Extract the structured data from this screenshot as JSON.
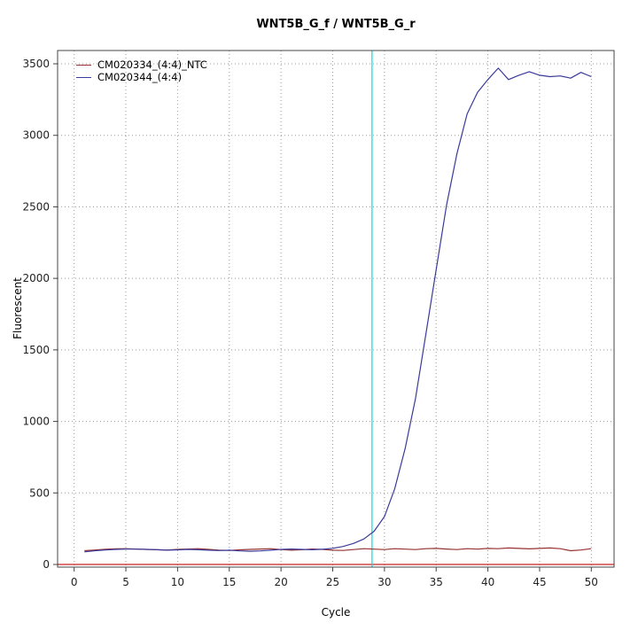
{
  "chart_data": {
    "type": "line",
    "title": "WNT5B_G_f / WNT5B_G_r",
    "xlabel": "Cycle",
    "ylabel": "Fluorescent",
    "x_ticks": [
      0,
      5,
      10,
      15,
      20,
      25,
      30,
      35,
      40,
      45,
      50
    ],
    "y_ticks": [
      0,
      500,
      1000,
      1500,
      2000,
      2500,
      3000,
      3500
    ],
    "xlim": [
      -1.6,
      52.2
    ],
    "ylim": [
      -18.6,
      3593
    ],
    "grid": "dotted",
    "legend_position": "top-left",
    "x": [
      1,
      2,
      3,
      4,
      5,
      6,
      7,
      8,
      9,
      10,
      11,
      12,
      13,
      14,
      15,
      16,
      17,
      18,
      19,
      20,
      21,
      22,
      23,
      24,
      25,
      26,
      27,
      28,
      29,
      30,
      31,
      32,
      33,
      34,
      35,
      36,
      37,
      38,
      39,
      40,
      41,
      42,
      43,
      44,
      45,
      46,
      47,
      48,
      49,
      50
    ],
    "series": [
      {
        "name": "CM020334_(4:4)_NTC",
        "color": "#963232",
        "values": [
          96,
          101,
          106,
          109,
          110,
          108,
          105,
          103,
          101,
          105,
          108,
          110,
          105,
          100,
          98,
          102,
          105,
          108,
          110,
          104,
          100,
          103,
          108,
          105,
          100,
          98,
          104,
          110,
          107,
          104,
          110,
          107,
          104,
          110,
          112,
          108,
          104,
          110,
          107,
          112,
          110,
          115,
          112,
          109,
          112,
          115,
          110,
          96,
          101,
          110
        ]
      },
      {
        "name": "CM020344_(4:4)",
        "color": "#3a3a9a",
        "values": [
          88,
          96,
          101,
          105,
          108,
          107,
          105,
          103,
          100,
          102,
          105,
          103,
          100,
          97,
          100,
          95,
          92,
          95,
          100,
          105,
          108,
          105,
          103,
          106,
          113,
          126,
          147,
          178,
          232,
          335,
          530,
          810,
          1160,
          1610,
          2060,
          2510,
          2870,
          3150,
          3300,
          3390,
          3470,
          3390,
          3420,
          3445,
          3420,
          3410,
          3415,
          3400,
          3440,
          3410
        ]
      }
    ],
    "threshold_line": {
      "y": 0,
      "color": "#cc2222"
    },
    "ct_line": {
      "x": 28.8,
      "color": "#00dddd"
    }
  }
}
